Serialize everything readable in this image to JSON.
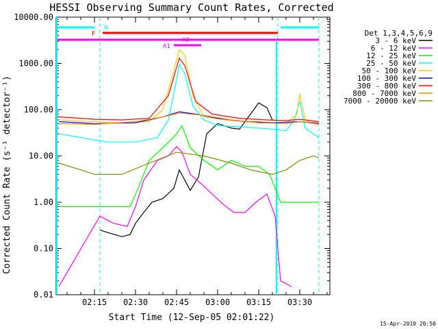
{
  "chart_data": {
    "type": "line",
    "title": "HESSI Observing Summary Count Rates, Corrected",
    "xlabel": "Start Time (12-Sep-05 02:01:22)",
    "ylabel": "Corrected Count Rate (s⁻¹ detector⁻¹)",
    "yscale": "log",
    "ylim": [
      0.01,
      10000
    ],
    "xlim_minutes": [
      "02:01",
      "03:41"
    ],
    "x_ticks": [
      "02:15",
      "02:30",
      "02:45",
      "03:00",
      "03:15",
      "03:30"
    ],
    "y_ticks": [
      "0.01",
      "0.10",
      "1.00",
      "10.00",
      "100.00",
      "1000.00",
      "10000.00"
    ],
    "legend_title": "Det 1,3,4,5,6,9",
    "legend_position": "right-outside",
    "grid": false,
    "annotations": {
      "N": "N",
      "F": "F",
      "A0": "A0",
      "A1": "A1"
    },
    "series": [
      {
        "name": "3 - 6 keV",
        "color": "#000000",
        "points": [
          [
            "02:17",
            0.25
          ],
          [
            "02:20",
            0.22
          ],
          [
            "02:25",
            0.18
          ],
          [
            "02:28",
            0.2
          ],
          [
            "02:30",
            0.35
          ],
          [
            "02:33",
            0.6
          ],
          [
            "02:36",
            1.0
          ],
          [
            "02:40",
            1.2
          ],
          [
            "02:44",
            2.0
          ],
          [
            "02:46",
            5.0
          ],
          [
            "02:48",
            3.0
          ],
          [
            "02:50",
            1.8
          ],
          [
            "02:53",
            3.5
          ],
          [
            "02:56",
            30
          ],
          [
            "03:00",
            50
          ],
          [
            "03:05",
            40
          ],
          [
            "03:08",
            38
          ],
          [
            "03:12",
            80
          ],
          [
            "03:15",
            140
          ],
          [
            "03:18",
            110
          ],
          [
            "03:20",
            60
          ]
        ]
      },
      {
        "name": "6 - 12 keV",
        "color": "#ff00ff",
        "points": [
          [
            "02:02",
            0.015
          ],
          [
            "02:17",
            0.5
          ],
          [
            "02:22",
            0.35
          ],
          [
            "02:27",
            0.3
          ],
          [
            "02:30",
            0.8
          ],
          [
            "02:33",
            3.0
          ],
          [
            "02:38",
            8.0
          ],
          [
            "02:42",
            10
          ],
          [
            "02:45",
            16
          ],
          [
            "02:47",
            12
          ],
          [
            "02:50",
            4.0
          ],
          [
            "02:54",
            2.5
          ],
          [
            "02:58",
            1.5
          ],
          [
            "03:02",
            0.9
          ],
          [
            "03:06",
            0.6
          ],
          [
            "03:10",
            0.6
          ],
          [
            "03:14",
            1.0
          ],
          [
            "03:18",
            1.5
          ],
          [
            "03:21",
            0.5
          ],
          [
            "03:23",
            0.02
          ],
          [
            "03:27",
            0.015
          ]
        ]
      },
      {
        "name": "12 - 25 keV",
        "color": "#00ff00",
        "points": [
          [
            "02:02",
            0.8
          ],
          [
            "02:15",
            0.8
          ],
          [
            "02:20",
            0.8
          ],
          [
            "02:28",
            0.8
          ],
          [
            "02:31",
            2.0
          ],
          [
            "02:35",
            8.0
          ],
          [
            "02:40",
            15
          ],
          [
            "02:45",
            30
          ],
          [
            "02:47",
            45
          ],
          [
            "02:50",
            15
          ],
          [
            "02:55",
            8.0
          ],
          [
            "03:00",
            5.0
          ],
          [
            "03:05",
            8.0
          ],
          [
            "03:10",
            6.0
          ],
          [
            "03:15",
            6.0
          ],
          [
            "03:19",
            4.0
          ],
          [
            "03:23",
            1.0
          ],
          [
            "03:37",
            1.0
          ]
        ]
      },
      {
        "name": "25 - 50 keV",
        "color": "#00ffff",
        "points": [
          [
            "02:02",
            30
          ],
          [
            "02:10",
            25
          ],
          [
            "02:15",
            22
          ],
          [
            "02:20",
            20
          ],
          [
            "02:30",
            20
          ],
          [
            "02:38",
            25
          ],
          [
            "02:42",
            60
          ],
          [
            "02:45",
            450
          ],
          [
            "02:46",
            950
          ],
          [
            "02:48",
            600
          ],
          [
            "02:51",
            120
          ],
          [
            "02:55",
            60
          ],
          [
            "03:00",
            45
          ],
          [
            "03:10",
            42
          ],
          [
            "03:15",
            40
          ],
          [
            "03:20",
            38
          ],
          [
            "03:25",
            35
          ],
          [
            "03:28",
            60
          ],
          [
            "03:30",
            150
          ],
          [
            "03:32",
            40
          ],
          [
            "03:37",
            25
          ]
        ]
      },
      {
        "name": "50 - 100 keV",
        "color": "#ffcc00",
        "points": [
          [
            "02:02",
            60
          ],
          [
            "02:15",
            55
          ],
          [
            "02:25",
            52
          ],
          [
            "02:35",
            55
          ],
          [
            "02:40",
            100
          ],
          [
            "02:44",
            700
          ],
          [
            "02:46",
            2000
          ],
          [
            "02:48",
            1500
          ],
          [
            "02:51",
            200
          ],
          [
            "02:55",
            70
          ],
          [
            "03:05",
            58
          ],
          [
            "03:15",
            55
          ],
          [
            "03:25",
            50
          ],
          [
            "03:29",
            80
          ],
          [
            "03:30",
            220
          ],
          [
            "03:32",
            60
          ],
          [
            "03:37",
            45
          ]
        ]
      },
      {
        "name": "100 - 300 keV",
        "color": "#0000ff",
        "points": [
          [
            "02:02",
            55
          ],
          [
            "02:15",
            50
          ],
          [
            "02:30",
            52
          ],
          [
            "02:40",
            70
          ],
          [
            "02:46",
            90
          ],
          [
            "02:52",
            80
          ],
          [
            "03:00",
            65
          ],
          [
            "03:10",
            55
          ],
          [
            "03:20",
            52
          ],
          [
            "03:30",
            55
          ],
          [
            "03:37",
            50
          ]
        ]
      },
      {
        "name": "300 - 800 keV",
        "color": "#ff0000",
        "points": [
          [
            "02:02",
            70
          ],
          [
            "02:10",
            65
          ],
          [
            "02:15",
            62
          ],
          [
            "02:25",
            60
          ],
          [
            "02:35",
            65
          ],
          [
            "02:42",
            200
          ],
          [
            "02:46",
            1300
          ],
          [
            "02:48",
            900
          ],
          [
            "02:52",
            150
          ],
          [
            "02:58",
            80
          ],
          [
            "03:08",
            65
          ],
          [
            "03:18",
            60
          ],
          [
            "03:25",
            58
          ],
          [
            "03:30",
            62
          ],
          [
            "03:37",
            55
          ]
        ]
      },
      {
        "name": "800 - 7000 keV",
        "color": "#ff8800",
        "points": [
          [
            "02:02",
            50
          ],
          [
            "02:15",
            48
          ],
          [
            "02:30",
            55
          ],
          [
            "02:40",
            70
          ],
          [
            "02:46",
            85
          ],
          [
            "02:55",
            75
          ],
          [
            "03:05",
            60
          ],
          [
            "03:15",
            52
          ],
          [
            "03:25",
            50
          ],
          [
            "03:30",
            55
          ],
          [
            "03:37",
            52
          ]
        ]
      },
      {
        "name": "7000 - 20000 keV",
        "color": "#888800",
        "points": [
          [
            "02:02",
            7.0
          ],
          [
            "02:10",
            5.0
          ],
          [
            "02:15",
            4.0
          ],
          [
            "02:25",
            4.0
          ],
          [
            "02:35",
            7.0
          ],
          [
            "02:45",
            12
          ],
          [
            "02:55",
            10
          ],
          [
            "03:05",
            7.0
          ],
          [
            "03:12",
            5.0
          ],
          [
            "03:20",
            4.0
          ],
          [
            "03:25",
            5.0
          ],
          [
            "03:30",
            8.0
          ],
          [
            "03:35",
            10
          ],
          [
            "03:37",
            9.0
          ]
        ]
      }
    ]
  },
  "footer_stamp": "15-Apr-2010 20:50"
}
